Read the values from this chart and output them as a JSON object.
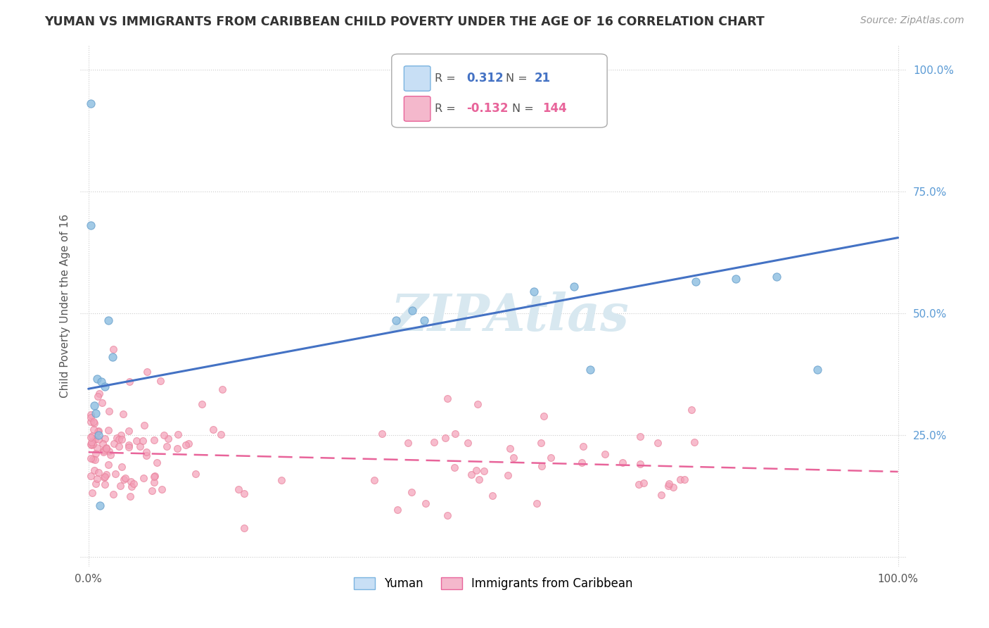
{
  "title": "YUMAN VS IMMIGRANTS FROM CARIBBEAN CHILD POVERTY UNDER THE AGE OF 16 CORRELATION CHART",
  "source_text": "Source: ZipAtlas.com",
  "ylabel": "Child Poverty Under the Age of 16",
  "r_yuman": 0.312,
  "n_yuman": 21,
  "r_caribbean": -0.132,
  "n_caribbean": 144,
  "yuman_color": "#8bbde0",
  "yuman_edge_color": "#6aa0cc",
  "caribbean_color": "#f4a0b8",
  "caribbean_edge_color": "#e8809a",
  "yuman_line_color": "#4472c4",
  "caribbean_line_color": "#e8649a",
  "background_color": "#ffffff",
  "watermark_text": "ZIPAtlas",
  "watermark_color": "#d8e8f0",
  "yuman_x": [
    0.003,
    0.003,
    0.007,
    0.009,
    0.011,
    0.012,
    0.014,
    0.016,
    0.02,
    0.025,
    0.03,
    0.38,
    0.4,
    0.415,
    0.55,
    0.6,
    0.62,
    0.75,
    0.8,
    0.85,
    0.9
  ],
  "yuman_y": [
    0.93,
    0.68,
    0.31,
    0.295,
    0.365,
    0.25,
    0.105,
    0.36,
    0.35,
    0.485,
    0.41,
    0.485,
    0.505,
    0.485,
    0.545,
    0.555,
    0.385,
    0.565,
    0.57,
    0.575,
    0.385
  ],
  "ytick_vals": [
    0.0,
    0.25,
    0.5,
    0.75,
    1.0
  ],
  "ytick_labels": [
    "",
    "25.0%",
    "50.0%",
    "75.0%",
    "100.0%"
  ],
  "ylim": [
    -0.02,
    1.05
  ],
  "xlim": [
    -0.01,
    1.01
  ],
  "yuman_trend_x0": 0.0,
  "yuman_trend_y0": 0.345,
  "yuman_trend_x1": 1.0,
  "yuman_trend_y1": 0.655,
  "carib_trend_x0": 0.0,
  "carib_trend_y0": 0.215,
  "carib_trend_x1": 1.0,
  "carib_trend_y1": 0.175
}
